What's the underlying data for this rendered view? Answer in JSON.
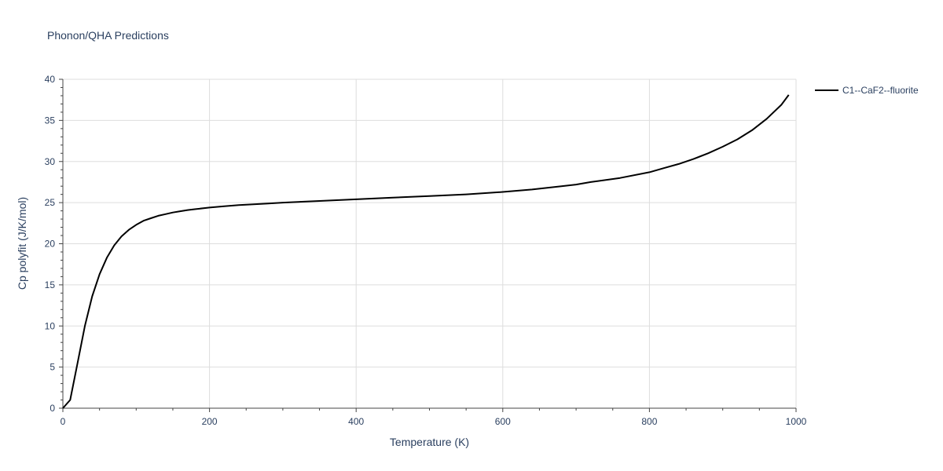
{
  "chart_data": {
    "type": "line",
    "title": "Phonon/QHA Predictions",
    "xlabel": "Temperature (K)",
    "ylabel": "Cp polyfit (J/K/mol)",
    "xlim": [
      0,
      1000
    ],
    "ylim": [
      0,
      40
    ],
    "xticks": [
      0,
      200,
      400,
      600,
      800,
      1000
    ],
    "yticks": [
      0,
      5,
      10,
      15,
      20,
      25,
      30,
      35,
      40
    ],
    "grid": true,
    "legend_position": "top-right",
    "series": [
      {
        "name": "C1--CaF2--fluorite",
        "color": "#000000",
        "x": [
          0,
          10,
          20,
          30,
          40,
          50,
          60,
          70,
          80,
          90,
          100,
          110,
          120,
          130,
          140,
          150,
          160,
          170,
          180,
          200,
          220,
          240,
          260,
          280,
          300,
          350,
          400,
          450,
          500,
          550,
          600,
          640,
          680,
          700,
          720,
          760,
          800,
          820,
          840,
          860,
          880,
          900,
          920,
          940,
          960,
          980,
          990
        ],
        "y": [
          0,
          1.0,
          5.5,
          10.0,
          13.6,
          16.3,
          18.3,
          19.8,
          20.9,
          21.7,
          22.3,
          22.8,
          23.1,
          23.4,
          23.6,
          23.8,
          23.95,
          24.1,
          24.2,
          24.4,
          24.55,
          24.7,
          24.8,
          24.9,
          25.0,
          25.2,
          25.4,
          25.6,
          25.8,
          26.0,
          26.3,
          26.6,
          27.0,
          27.2,
          27.5,
          28.0,
          28.7,
          29.2,
          29.7,
          30.3,
          31.0,
          31.8,
          32.7,
          33.8,
          35.2,
          36.9,
          38.1
        ]
      }
    ]
  }
}
